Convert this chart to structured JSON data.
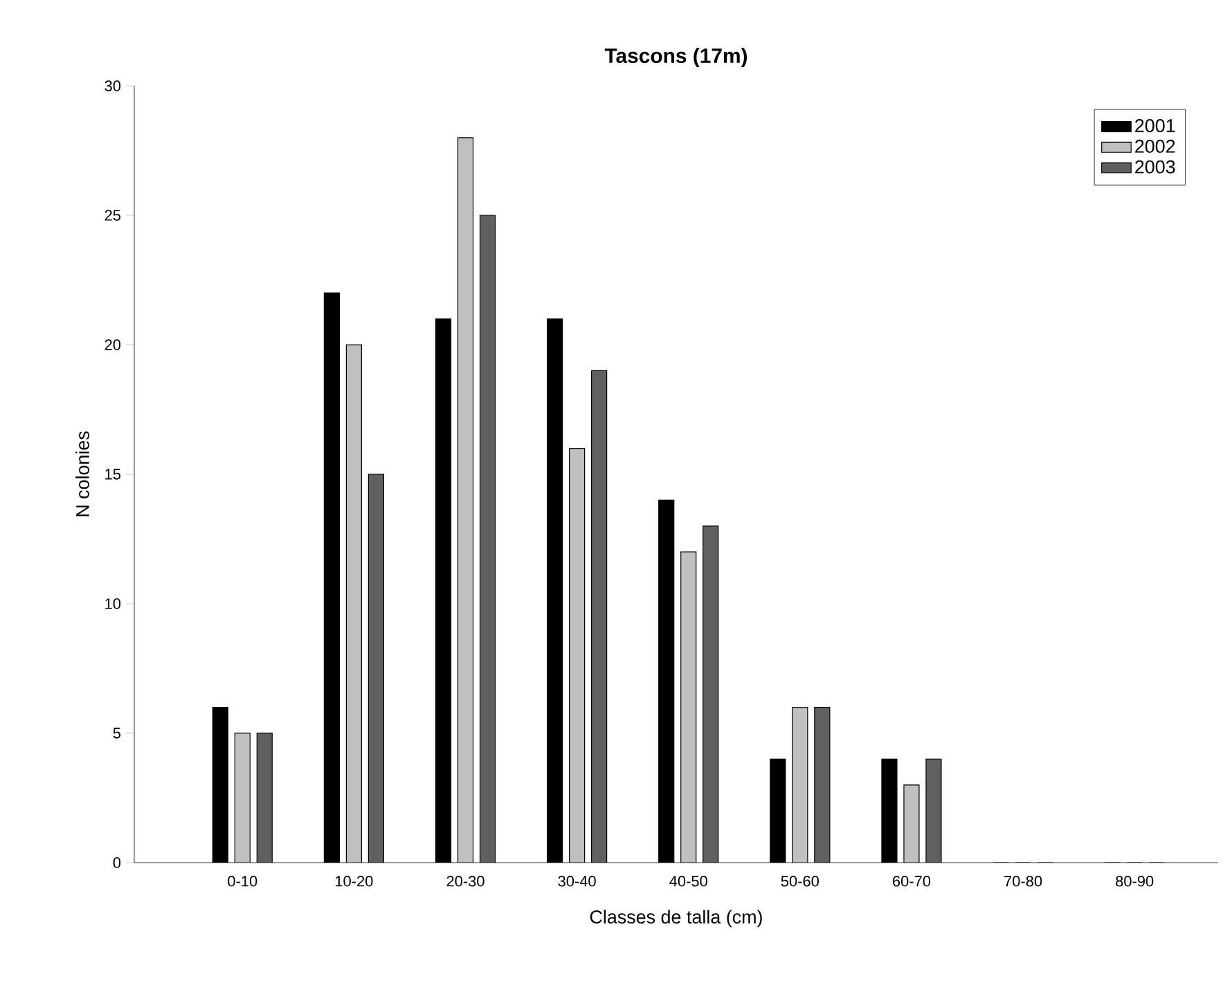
{
  "chart_data": {
    "type": "bar",
    "title": "Tascons (17m)",
    "xlabel": "Classes de talla (cm)",
    "ylabel": "N colonies",
    "categories": [
      "0-10",
      "10-20",
      "20-30",
      "30-40",
      "40-50",
      "50-60",
      "60-70",
      "70-80",
      "80-90"
    ],
    "series": [
      {
        "name": "2001",
        "color": "#000000",
        "values": [
          6,
          22,
          21,
          21,
          14,
          4,
          4,
          0,
          0
        ]
      },
      {
        "name": "2002",
        "color": "#c0c0c0",
        "values": [
          5,
          20,
          28,
          16,
          12,
          6,
          3,
          0,
          0
        ]
      },
      {
        "name": "2003",
        "color": "#606060",
        "values": [
          5,
          15,
          25,
          19,
          13,
          6,
          4,
          0,
          0
        ]
      }
    ],
    "ylim": [
      0,
      30
    ],
    "yticks": [
      0,
      5,
      10,
      15,
      20,
      25,
      30
    ],
    "legend": "top right",
    "grid": false
  }
}
